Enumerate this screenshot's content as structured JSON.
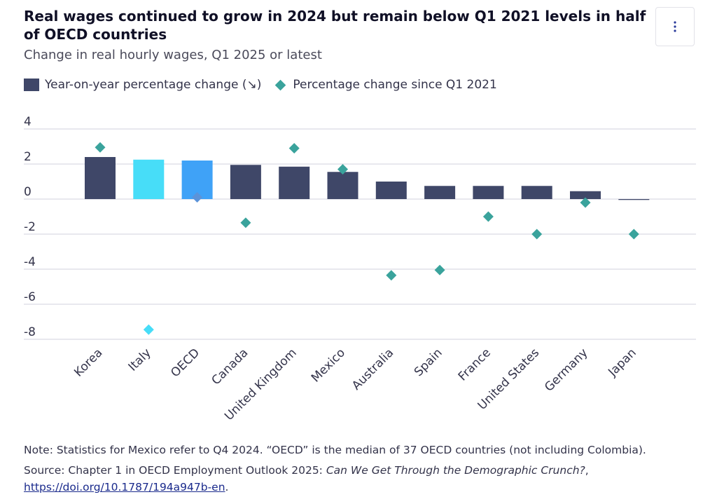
{
  "header": {
    "title": "Real wages continued to grow in 2024 but remain below Q1 2021 levels in half of OECD countries",
    "subtitle": "Change in real hourly wages, Q1 2025 or latest",
    "menu_icon": "vertical-ellipsis-icon"
  },
  "legend": {
    "bar_label": "Year-on-year percentage change (↘)",
    "marker_label": "Percentage change since Q1 2021"
  },
  "colors": {
    "bar_default": "#3f4768",
    "bar_italy": "#47ddf8",
    "bar_oecd": "#3fa2f7",
    "marker_default": "#3aa39c",
    "marker_italy": "#47ddf8",
    "marker_oecd": "#5b93d9",
    "grid": "#d0d0dc"
  },
  "chart_data": {
    "type": "bar",
    "categories": [
      "Korea",
      "Italy",
      "OECD",
      "Canada",
      "United Kingdom",
      "Mexico",
      "Australia",
      "Spain",
      "France",
      "United States",
      "Germany",
      "Japan"
    ],
    "series": [
      {
        "name": "Year-on-year percentage change",
        "kind": "bar",
        "values": [
          2.4,
          2.25,
          2.2,
          1.95,
          1.85,
          1.55,
          1.0,
          0.75,
          0.75,
          0.75,
          0.45,
          -0.05
        ]
      },
      {
        "name": "Percentage change since Q1 2021",
        "kind": "diamond",
        "values": [
          2.95,
          -7.45,
          0.1,
          -1.35,
          2.9,
          1.7,
          -4.35,
          -4.05,
          -1.0,
          -2.0,
          -0.2,
          -2.0
        ]
      }
    ],
    "yticks": [
      4,
      2,
      0,
      -2,
      -4,
      -6,
      -8
    ],
    "ylim": [
      -8,
      4
    ],
    "grid": true,
    "legend_position": "top-left"
  },
  "footer": {
    "note": "Note: Statistics for Mexico refer to Q4 2024. “OECD” is the median of 37 OECD countries (not including Colombia).",
    "source_prefix": "Source: Chapter 1 in OECD Employment Outlook 2025: ",
    "source_title": "Can We Get Through the Demographic Crunch?",
    "source_sep": ", ",
    "source_link": "https://doi.org/10.1787/194a947b-en",
    "source_end": "."
  }
}
